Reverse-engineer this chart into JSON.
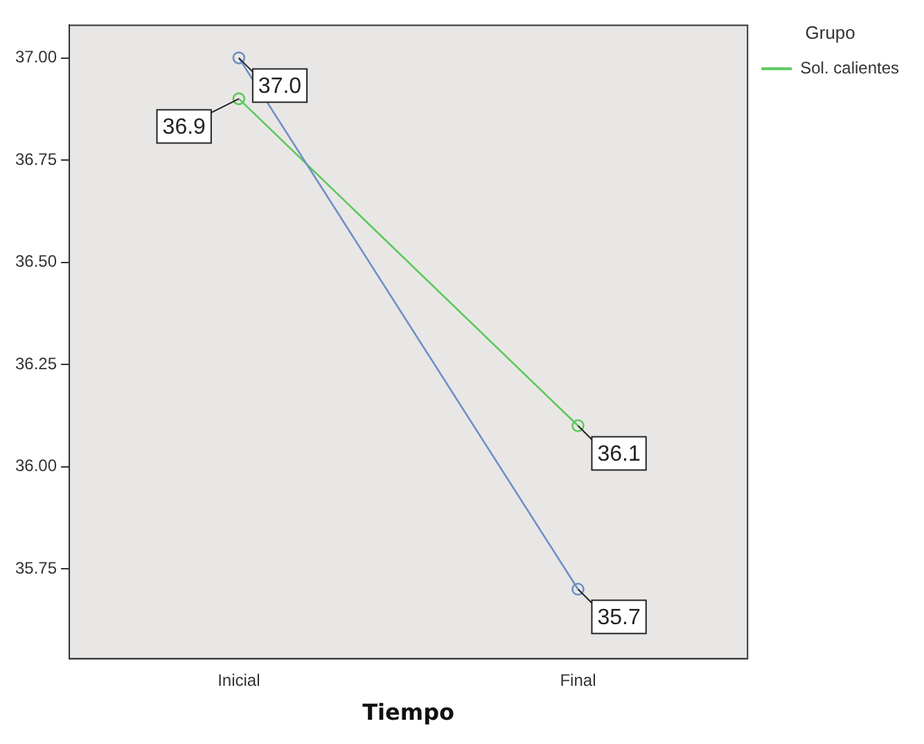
{
  "chart_data": {
    "type": "line",
    "xlabel": "Tiempo",
    "categories": [
      "Inicial",
      "Final"
    ],
    "series": [
      {
        "color": "#6f8fc4",
        "values": [
          37.0,
          35.7
        ],
        "value_labels": [
          "37.0",
          "35.7"
        ]
      },
      {
        "name": "Sol. calientes",
        "color": "#5cc85c",
        "values": [
          36.9,
          36.1
        ],
        "value_labels": [
          "36.9",
          "36.1"
        ]
      }
    ],
    "ylim": [
      35.53,
      37.08
    ],
    "yticks": [
      {
        "value": 35.75,
        "label": "35.75"
      },
      {
        "value": 36.0,
        "label": "36.00"
      },
      {
        "value": 36.25,
        "label": "36.25"
      },
      {
        "value": 36.5,
        "label": "36.50"
      },
      {
        "value": 36.75,
        "label": "36.75"
      },
      {
        "value": 37.0,
        "label": "37.00"
      }
    ],
    "legend": "top right",
    "legend_title": "Grupo",
    "marker": "circle",
    "line_style": "solid",
    "grid": false
  }
}
